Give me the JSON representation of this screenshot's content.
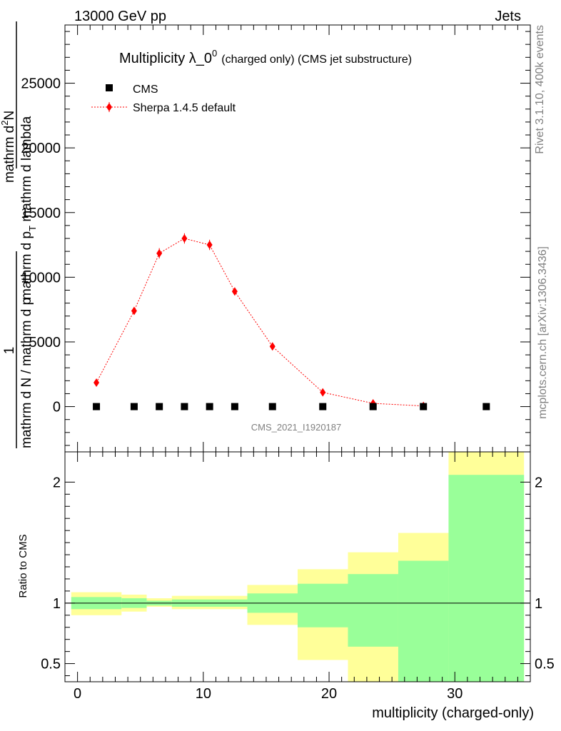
{
  "header": {
    "left": "13000 GeV pp",
    "right": "Jets"
  },
  "side_labels": {
    "rivet": "Rivet 3.1.10,  400k events",
    "mcplots": "mcplots.cern.ch [arXiv:1306.3436]"
  },
  "chart_data": [
    {
      "type": "scatter",
      "title": "Multiplicity λ_0",
      "title_superscript": "0",
      "title_suffix": "(charged only) (CMS jet substructure)",
      "watermark": "CMS_2021_I1920187",
      "ylabel_parts": {
        "frac_numerator": "1",
        "frac_denominator": "mathrm d N / mathrm d p",
        "mid_line": "mathrm d p",
        "mid_sub": "T",
        "mid_suffix": " mathrm d lambda",
        "top_line": "mathrm d",
        "top_sup": "2",
        "top_suffix": "N"
      },
      "ylim": [
        -3500,
        29500
      ],
      "xlim": [
        -1,
        36
      ],
      "y_ticks": [
        0,
        5000,
        10000,
        15000,
        20000,
        25000
      ],
      "y_tick_labels": [
        "0",
        "5000",
        "10000",
        "15000",
        "20000",
        "25000"
      ],
      "legend_position": "top-left",
      "series": [
        {
          "name": "CMS",
          "marker": "square",
          "color": "#000000",
          "x": [
            1.5,
            4.5,
            6.5,
            8.5,
            10.5,
            12.5,
            15.5,
            19.5,
            23.5,
            27.5,
            32.5
          ],
          "y": [
            0,
            0,
            0,
            0,
            0,
            0,
            0,
            0,
            0,
            0,
            0
          ]
        },
        {
          "name": "Sherpa 1.4.5 default",
          "marker": "diamond",
          "line": "dotted",
          "color": "#ff0000",
          "x": [
            1.5,
            4.5,
            6.5,
            8.5,
            10.5,
            12.5,
            15.5,
            19.5,
            23.5,
            27.5
          ],
          "y": [
            1850,
            7400,
            11850,
            13000,
            12500,
            8900,
            4650,
            1100,
            250,
            50
          ],
          "yerr": [
            100,
            250,
            400,
            400,
            400,
            300,
            180,
            80,
            30,
            10
          ]
        }
      ]
    },
    {
      "type": "area",
      "ylabel": "Ratio to CMS",
      "xlabel": "multiplicity (charged-only)",
      "xlim": [
        -1,
        36
      ],
      "ylim": [
        0.35,
        2.25
      ],
      "x_ticks": [
        0,
        10,
        20,
        30
      ],
      "x_tick_labels": [
        "0",
        "10",
        "20",
        "30"
      ],
      "y_ticks": [
        0.5,
        1,
        2
      ],
      "y_tick_labels": [
        "0.5",
        "1",
        "2"
      ],
      "reference_line": 1,
      "bands": {
        "stat_color": "#99ff99",
        "total_color": "#ffff99",
        "bins": [
          {
            "x0": -0.5,
            "x1": 3.5,
            "total": [
              0.9,
              1.09
            ],
            "stat": [
              0.95,
              1.05
            ]
          },
          {
            "x0": 3.5,
            "x1": 5.5,
            "total": [
              0.93,
              1.07
            ],
            "stat": [
              0.96,
              1.04
            ]
          },
          {
            "x0": 5.5,
            "x1": 7.5,
            "total": [
              0.97,
              1.04
            ],
            "stat": [
              0.98,
              1.02
            ]
          },
          {
            "x0": 7.5,
            "x1": 13.5,
            "total": [
              0.95,
              1.06
            ],
            "stat": [
              0.97,
              1.03
            ]
          },
          {
            "x0": 13.5,
            "x1": 17.5,
            "total": [
              0.82,
              1.15
            ],
            "stat": [
              0.92,
              1.08
            ]
          },
          {
            "x0": 17.5,
            "x1": 21.5,
            "total": [
              0.53,
              1.28
            ],
            "stat": [
              0.8,
              1.16
            ]
          },
          {
            "x0": 21.5,
            "x1": 25.5,
            "total": [
              0.35,
              1.42
            ],
            "stat": [
              0.64,
              1.24
            ]
          },
          {
            "x0": 25.5,
            "x1": 29.5,
            "total": [
              0.35,
              1.58
            ],
            "stat": [
              0.35,
              1.35
            ]
          },
          {
            "x0": 29.5,
            "x1": 35.5,
            "total": [
              0.35,
              2.25
            ],
            "stat": [
              0.35,
              2.06
            ]
          }
        ]
      }
    }
  ]
}
